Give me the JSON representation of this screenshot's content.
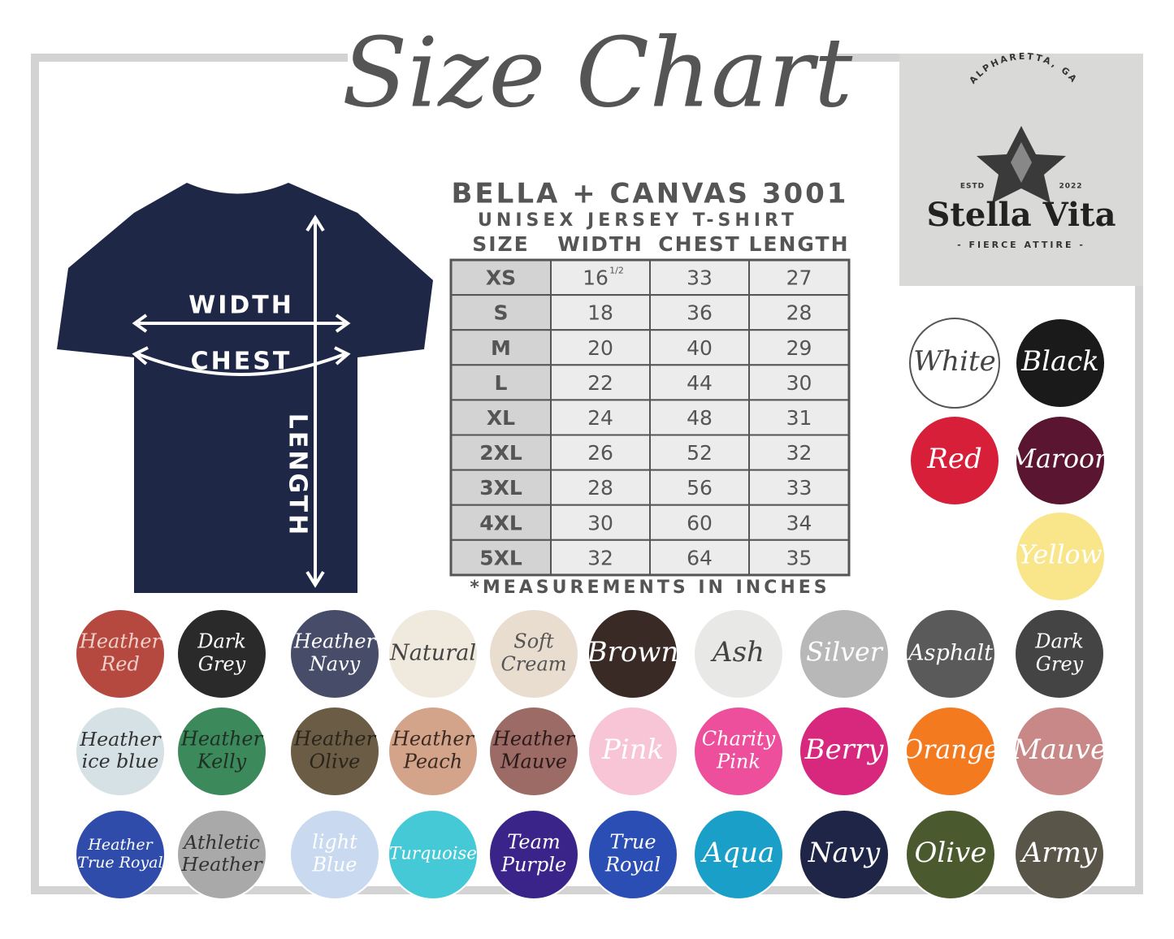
{
  "title": "Size Chart",
  "shirt": {
    "labels": [
      "WIDTH",
      "CHEST",
      "LENGTH"
    ]
  },
  "table": {
    "title": "BELLA + CANVAS 3001",
    "subtitle": "UNISEX JERSEY T-SHIRT",
    "headers": [
      "SIZE",
      "WIDTH",
      "CHEST",
      "LENGTH"
    ],
    "rows": [
      [
        "XS",
        {
          "whole": 16,
          "fraction": "1/2"
        },
        33,
        27
      ],
      [
        "S",
        18,
        36,
        28
      ],
      [
        "M",
        20,
        40,
        29
      ],
      [
        "L",
        22,
        44,
        30
      ],
      [
        "XL",
        24,
        48,
        31
      ],
      [
        "2XL",
        26,
        52,
        32
      ],
      [
        "3XL",
        28,
        56,
        33
      ],
      [
        "4XL",
        30,
        60,
        34
      ],
      [
        "5XL",
        32,
        64,
        35
      ]
    ]
  },
  "note": "*MEASUREMENTS IN INCHES",
  "logo": {
    "location": "ALPHARETTA, GA",
    "estd": "ESTD",
    "year": "2022",
    "brand": "Stella Vita",
    "tagline": "- FIERCE ATTIRE -"
  },
  "swatches": [
    {
      "lines": [
        "White"
      ],
      "color": "#ffffff",
      "text": "#444444"
    },
    {
      "lines": [
        "Black"
      ],
      "color": "#1a1a1a",
      "text": "#ffffff"
    },
    {
      "lines": [
        "Red"
      ],
      "color": "#d81f3a",
      "text": "#ffffff"
    },
    {
      "lines": [
        "Maroon"
      ],
      "color": "#5a1530",
      "text": "#ffffff"
    },
    {
      "lines": [
        "Yellow"
      ],
      "color": "#f9e68a",
      "text": "#ffffff"
    },
    {
      "lines": [
        "Heather",
        "Red"
      ],
      "color": "#b5483f",
      "text": "#f0d0c8"
    },
    {
      "lines": [
        "Dark",
        "Grey"
      ],
      "color": "#2a2a2a",
      "text": "#ffffff"
    },
    {
      "lines": [
        "Heather",
        "Navy"
      ],
      "color": "#474d69",
      "text": "#ffffff"
    },
    {
      "lines": [
        "Natural"
      ],
      "color": "#efe9de",
      "text": "#444444"
    },
    {
      "lines": [
        "Soft",
        "Cream"
      ],
      "color": "#e8ddcf",
      "text": "#555555"
    },
    {
      "lines": [
        "Brown"
      ],
      "color": "#3a2a26",
      "text": "#ffffff"
    },
    {
      "lines": [
        "Ash"
      ],
      "color": "#e8e8e6",
      "text": "#444444"
    },
    {
      "lines": [
        "Silver"
      ],
      "color": "#b8b8b8",
      "text": "#ffffff"
    },
    {
      "lines": [
        "Asphalt"
      ],
      "color": "#5a5a5a",
      "text": "#ffffff"
    },
    {
      "lines": [
        "Dark",
        "Grey"
      ],
      "color": "#444444",
      "text": "#ffffff"
    },
    {
      "lines": [
        "Heather",
        "ice blue"
      ],
      "color": "#d5e1e4",
      "text": "#333333"
    },
    {
      "lines": [
        "Heather",
        "Kelly"
      ],
      "color": "#3c8a5c",
      "text": "#1f2f24"
    },
    {
      "lines": [
        "Heather",
        "Olive"
      ],
      "color": "#6b5d45",
      "text": "#2a241a"
    },
    {
      "lines": [
        "Heather",
        "Peach"
      ],
      "color": "#d4a48a",
      "text": "#3a2a22"
    },
    {
      "lines": [
        "Heather",
        "Mauve"
      ],
      "color": "#9c6b66",
      "text": "#2a1a18"
    },
    {
      "lines": [
        "Pink"
      ],
      "color": "#f7c5d6",
      "text": "#ffffff"
    },
    {
      "lines": [
        "Charity",
        "Pink"
      ],
      "color": "#ee4f9c",
      "text": "#ffffff"
    },
    {
      "lines": [
        "Berry"
      ],
      "color": "#d8287e",
      "text": "#ffffff"
    },
    {
      "lines": [
        "Orange"
      ],
      "color": "#f47a20",
      "text": "#ffffff"
    },
    {
      "lines": [
        "Mauve"
      ],
      "color": "#c88888",
      "text": "#ffffff"
    },
    {
      "lines": [
        "Heather",
        "True Royal"
      ],
      "color": "#2f4cab",
      "text": "#ffffff"
    },
    {
      "lines": [
        "Athletic",
        "Heather"
      ],
      "color": "#a9a9a9",
      "text": "#333333"
    },
    {
      "lines": [
        "light",
        "Blue"
      ],
      "color": "#c9daf0",
      "text": "#ffffff"
    },
    {
      "lines": [
        "Turquoise"
      ],
      "color": "#45c9d6",
      "text": "#ffffff"
    },
    {
      "lines": [
        "Team",
        "Purple"
      ],
      "color": "#3b2489",
      "text": "#ffffff"
    },
    {
      "lines": [
        "True",
        "Royal"
      ],
      "color": "#2b4eb5",
      "text": "#ffffff"
    },
    {
      "lines": [
        "Aqua"
      ],
      "color": "#1aa0c8",
      "text": "#ffffff"
    },
    {
      "lines": [
        "Navy"
      ],
      "color": "#1e2547",
      "text": "#ffffff"
    },
    {
      "lines": [
        "Olive"
      ],
      "color": "#4a5a2e",
      "text": "#ffffff"
    },
    {
      "lines": [
        "Army"
      ],
      "color": "#5a5549",
      "text": "#ffffff"
    }
  ]
}
